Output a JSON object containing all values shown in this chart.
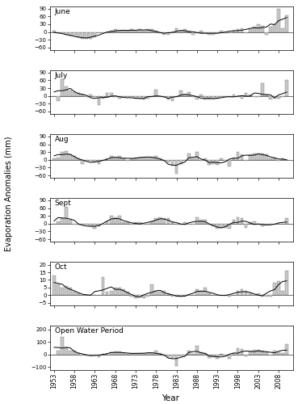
{
  "years": [
    1953,
    1954,
    1955,
    1956,
    1957,
    1958,
    1959,
    1960,
    1961,
    1962,
    1963,
    1964,
    1965,
    1966,
    1967,
    1968,
    1969,
    1970,
    1971,
    1972,
    1973,
    1974,
    1975,
    1976,
    1977,
    1978,
    1979,
    1980,
    1981,
    1982,
    1983,
    1984,
    1985,
    1986,
    1987,
    1988,
    1989,
    1990,
    1991,
    1992,
    1993,
    1994,
    1995,
    1996,
    1997,
    1998,
    1999,
    2000,
    2001,
    2002,
    2003,
    2004,
    2005,
    2006,
    2007,
    2008,
    2009,
    2010
  ],
  "panels": [
    {
      "label": "June",
      "ylim": [
        -70,
        100
      ],
      "yticks": [
        -60,
        -30,
        0,
        30,
        60,
        90
      ],
      "data": [
        5,
        -5,
        -5,
        -10,
        -15,
        -15,
        -20,
        -25,
        -25,
        -25,
        -20,
        -5,
        -5,
        -5,
        5,
        10,
        5,
        5,
        5,
        10,
        5,
        10,
        5,
        10,
        10,
        5,
        -5,
        -10,
        -10,
        -5,
        15,
        5,
        10,
        5,
        -10,
        -5,
        5,
        -5,
        -10,
        -10,
        -5,
        5,
        -5,
        0,
        5,
        10,
        15,
        -5,
        10,
        20,
        30,
        25,
        -10,
        20,
        30,
        88,
        15,
        65
      ]
    },
    {
      "label": "July",
      "ylim": [
        -70,
        100
      ],
      "yticks": [
        -60,
        -30,
        0,
        30,
        60,
        90
      ],
      "data": [
        0,
        -20,
        65,
        35,
        20,
        15,
        10,
        5,
        -5,
        5,
        -5,
        -35,
        -10,
        10,
        10,
        -5,
        -10,
        -5,
        -5,
        -5,
        -10,
        -10,
        -15,
        -10,
        -5,
        25,
        -5,
        -5,
        -15,
        -20,
        -5,
        20,
        5,
        15,
        -5,
        -15,
        5,
        -15,
        -15,
        -10,
        -10,
        -5,
        -5,
        -5,
        5,
        -5,
        -10,
        10,
        5,
        -5,
        -5,
        50,
        5,
        -15,
        -10,
        -10,
        -5,
        60
      ]
    },
    {
      "label": "Aug",
      "ylim": [
        -70,
        100
      ],
      "yticks": [
        -60,
        -30,
        0,
        30,
        60,
        90
      ],
      "data": [
        5,
        10,
        30,
        35,
        20,
        15,
        5,
        -15,
        -5,
        -5,
        -10,
        -15,
        -5,
        5,
        15,
        10,
        15,
        5,
        -5,
        5,
        10,
        10,
        10,
        10,
        10,
        15,
        5,
        -5,
        -10,
        -20,
        -55,
        -15,
        -5,
        25,
        5,
        30,
        -5,
        5,
        -20,
        -15,
        -20,
        5,
        -5,
        -25,
        10,
        30,
        20,
        -5,
        20,
        25,
        25,
        25,
        20,
        5,
        10,
        -5,
        5,
        0
      ]
    },
    {
      "label": "Sept",
      "ylim": [
        -70,
        100
      ],
      "yticks": [
        -60,
        -30,
        0,
        30,
        60,
        90
      ],
      "data": [
        0,
        10,
        20,
        65,
        15,
        -5,
        -5,
        -5,
        -5,
        -10,
        -20,
        -10,
        -5,
        10,
        30,
        25,
        30,
        5,
        5,
        -5,
        5,
        5,
        -5,
        -5,
        10,
        20,
        25,
        20,
        20,
        5,
        -5,
        -5,
        5,
        -5,
        -5,
        25,
        15,
        15,
        -5,
        -10,
        -20,
        -15,
        -15,
        -20,
        15,
        25,
        20,
        -15,
        5,
        10,
        -5,
        -10,
        -5,
        -5,
        0,
        0,
        0,
        20
      ]
    },
    {
      "label": "Oct",
      "ylim": [
        -7,
        22
      ],
      "yticks": [
        -5,
        0,
        5,
        10,
        15,
        20
      ],
      "data": [
        13,
        7,
        5,
        6,
        5,
        2,
        1,
        0,
        0,
        0,
        0,
        0,
        12,
        2,
        3,
        5,
        5,
        4,
        2,
        -1,
        -2,
        -1,
        -2,
        -1,
        7,
        3,
        2,
        3,
        1,
        -1,
        -1,
        -1,
        -1,
        0,
        0,
        4,
        3,
        5,
        1,
        0,
        0,
        0,
        0,
        -1,
        0,
        3,
        4,
        3,
        1,
        0,
        1,
        -1,
        -1,
        -1,
        8,
        9,
        3,
        16
      ]
    },
    {
      "label": "Open Water Period",
      "ylim": [
        -120,
        230
      ],
      "yticks": [
        -100,
        0,
        100,
        200
      ],
      "data": [
        0,
        30,
        140,
        55,
        30,
        30,
        10,
        -5,
        -5,
        -5,
        -10,
        -20,
        5,
        5,
        20,
        25,
        25,
        10,
        5,
        10,
        10,
        10,
        10,
        10,
        10,
        30,
        10,
        -10,
        -20,
        -30,
        -90,
        -15,
        -5,
        30,
        5,
        70,
        15,
        10,
        -30,
        -20,
        -35,
        5,
        -10,
        -35,
        10,
        50,
        45,
        -15,
        25,
        35,
        40,
        30,
        20,
        -5,
        30,
        15,
        10,
        80
      ]
    }
  ],
  "bar_color": "#c8c8c8",
  "bar_edge_color": "#777777",
  "line_color": "#000000",
  "background_color": "#ffffff",
  "ylabel": "Evaporation Anomalies (mm)",
  "xlabel": "Year",
  "x_tick_years": [
    1953,
    1958,
    1963,
    1968,
    1973,
    1978,
    1983,
    1988,
    1993,
    1998,
    2003,
    2008
  ]
}
